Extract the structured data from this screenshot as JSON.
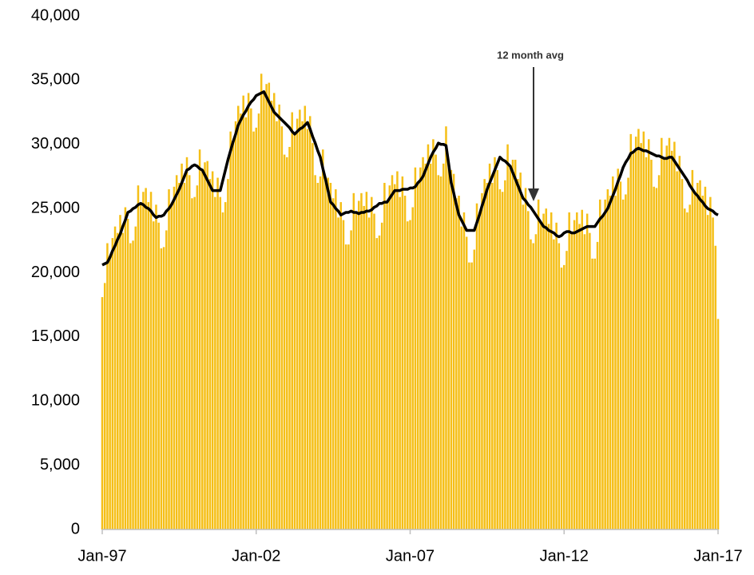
{
  "chart_data": {
    "type": "bar",
    "annotation": "12 month avg",
    "categories": [
      "Jan-97",
      null,
      null,
      null,
      null,
      null,
      null,
      null,
      null,
      null,
      null,
      null,
      null,
      null,
      null,
      null,
      null,
      null,
      null,
      null,
      null,
      null,
      null,
      null,
      null,
      null,
      null,
      null,
      null,
      null,
      null,
      null,
      null,
      null,
      null,
      null,
      null,
      null,
      null,
      null,
      null,
      null,
      null,
      null,
      null,
      null,
      null,
      null,
      null,
      null,
      null,
      null,
      null,
      null,
      null,
      null,
      null,
      null,
      null,
      null,
      "Jan-02",
      null,
      null,
      null,
      null,
      null,
      null,
      null,
      null,
      null,
      null,
      null,
      null,
      null,
      null,
      null,
      null,
      null,
      null,
      null,
      null,
      null,
      null,
      null,
      null,
      null,
      null,
      null,
      null,
      null,
      null,
      null,
      null,
      null,
      null,
      null,
      null,
      null,
      null,
      null,
      null,
      null,
      null,
      null,
      null,
      null,
      null,
      null,
      null,
      null,
      null,
      null,
      null,
      null,
      null,
      null,
      null,
      null,
      null,
      null,
      "Jan-07",
      null,
      null,
      null,
      null,
      null,
      null,
      null,
      null,
      null,
      null,
      null,
      null,
      null,
      null,
      null,
      null,
      null,
      null,
      null,
      null,
      null,
      null,
      null,
      null,
      null,
      null,
      null,
      null,
      null,
      null,
      null,
      null,
      null,
      null,
      null,
      null,
      null,
      null,
      null,
      null,
      null,
      null,
      null,
      null,
      null,
      null,
      null,
      null,
      null,
      null,
      null,
      null,
      null,
      null,
      null,
      null,
      null,
      null,
      null,
      "Jan-12",
      null,
      null,
      null,
      null,
      null,
      null,
      null,
      null,
      null,
      null,
      null,
      null,
      null,
      null,
      null,
      null,
      null,
      null,
      null,
      null,
      null,
      null,
      null,
      null,
      null,
      null,
      null,
      null,
      null,
      null,
      null,
      null,
      null,
      null,
      null,
      null,
      null,
      null,
      null,
      null,
      null,
      null,
      null,
      null,
      null,
      null,
      null,
      null,
      null,
      null,
      null,
      null,
      null,
      null,
      null,
      null,
      null,
      null,
      null,
      "Jan-17"
    ],
    "series": [
      {
        "type": "bar",
        "color": "#f5bf17",
        "values": [
          18100,
          19200,
          22300,
          21200,
          22700,
          23600,
          23100,
          24500,
          23100,
          25100,
          24200,
          22300,
          22500,
          23600,
          26800,
          25400,
          26300,
          26600,
          25500,
          26300,
          24000,
          25300,
          23900,
          21900,
          22000,
          23300,
          26500,
          25300,
          26700,
          27600,
          27000,
          28500,
          27000,
          29000,
          27600,
          25800,
          25900,
          26800,
          29600,
          28000,
          28600,
          28700,
          27300,
          27900,
          25900,
          27400,
          25900,
          24700,
          25500,
          27300,
          31000,
          30200,
          31800,
          33000,
          32400,
          33800,
          32100,
          34000,
          32800,
          31000,
          31300,
          32400,
          35500,
          34100,
          34700,
          34800,
          33400,
          34000,
          31800,
          33100,
          31400,
          29200,
          29000,
          29800,
          32500,
          30800,
          32000,
          32700,
          31800,
          33000,
          31200,
          32200,
          30100,
          27600,
          27000,
          27500,
          29600,
          27300,
          27400,
          27000,
          25800,
          26500,
          24300,
          25500,
          24100,
          22200,
          22200,
          23300,
          26200,
          24700,
          25600,
          26200,
          25200,
          26300,
          24300,
          25900,
          24600,
          22700,
          22900,
          23900,
          27000,
          25500,
          26800,
          27600,
          26900,
          27900,
          25900,
          27500,
          26000,
          24000,
          24100,
          25100,
          28200,
          27000,
          28200,
          29000,
          28500,
          30000,
          28500,
          30400,
          29200,
          27600,
          27500,
          28500,
          31400,
          28500,
          28000,
          27700,
          25800,
          26000,
          23600,
          24700,
          22800,
          20800,
          20800,
          21800,
          25400,
          24500,
          26200,
          27300,
          27000,
          28500,
          27000,
          29000,
          28000,
          26500,
          26300,
          27200,
          30000,
          28300,
          28800,
          28800,
          27300,
          27800,
          25300,
          26600,
          24800,
          22600,
          22300,
          23000,
          25700,
          23900,
          24600,
          25000,
          23800,
          24700,
          22600,
          23900,
          22300,
          20400,
          20600,
          21700,
          24700,
          23100,
          24100,
          24700,
          23800,
          24900,
          23000,
          24600,
          23100,
          21100,
          21100,
          22400,
          25700,
          24400,
          25700,
          26500,
          26000,
          27500,
          26000,
          28100,
          27100,
          25700,
          26100,
          27400,
          30800,
          29400,
          30600,
          31200,
          30100,
          31000,
          29000,
          30400,
          28800,
          26700,
          26600,
          27600,
          30500,
          28900,
          29900,
          30500,
          29500,
          30200,
          27900,
          29100,
          27300,
          25000,
          24700,
          25300,
          28000,
          26200,
          27000,
          27200,
          26000,
          26700,
          24500,
          25900,
          24300,
          22100,
          16400
        ]
      },
      {
        "type": "line",
        "color": "#000000",
        "values": [
          20600,
          20700,
          20800,
          21200,
          21700,
          22100,
          22600,
          23000,
          23600,
          24100,
          24700,
          24800,
          25000,
          25100,
          25300,
          25400,
          25300,
          25100,
          25000,
          24800,
          24500,
          24300,
          24400,
          24400,
          24500,
          24800,
          25000,
          25300,
          25700,
          26100,
          26500,
          27000,
          27500,
          28000,
          28100,
          28300,
          28400,
          28300,
          28100,
          28000,
          27600,
          27200,
          26800,
          26400,
          26400,
          26400,
          26400,
          27200,
          28000,
          28800,
          29500,
          30200,
          30800,
          31500,
          31900,
          32300,
          32600,
          33000,
          33300,
          33500,
          33800,
          33900,
          34000,
          34100,
          33700,
          33300,
          32900,
          32500,
          32300,
          32100,
          31900,
          31700,
          31500,
          31300,
          31000,
          30800,
          31000,
          31200,
          31300,
          31500,
          31700,
          31200,
          30600,
          30100,
          29500,
          29000,
          28100,
          27300,
          26400,
          25500,
          25300,
          25000,
          24800,
          24500,
          24600,
          24700,
          24700,
          24800,
          24700,
          24700,
          24600,
          24700,
          24700,
          24800,
          24800,
          24900,
          25100,
          25200,
          25400,
          25400,
          25500,
          25500,
          25800,
          26100,
          26400,
          26400,
          26400,
          26500,
          26500,
          26500,
          26600,
          26600,
          26700,
          27000,
          27200,
          27500,
          28000,
          28500,
          29000,
          29400,
          29700,
          30100,
          30000,
          30000,
          29900,
          28500,
          27000,
          26200,
          25300,
          24500,
          24100,
          23700,
          23300,
          23300,
          23300,
          23300,
          23900,
          24500,
          25200,
          25800,
          26500,
          27000,
          27500,
          28000,
          28500,
          29000,
          28800,
          28700,
          28500,
          28300,
          27800,
          27300,
          26800,
          26300,
          25800,
          25600,
          25300,
          25100,
          24800,
          24500,
          24200,
          23900,
          23600,
          23500,
          23300,
          23200,
          23100,
          22900,
          22800,
          22900,
          23100,
          23200,
          23200,
          23100,
          23100,
          23200,
          23300,
          23400,
          23500,
          23600,
          23600,
          23600,
          23600,
          23900,
          24200,
          24400,
          24700,
          25000,
          25500,
          26000,
          26500,
          27100,
          27600,
          28200,
          28600,
          28900,
          29300,
          29400,
          29600,
          29700,
          29600,
          29500,
          29500,
          29400,
          29300,
          29200,
          29100,
          29100,
          29000,
          28900,
          28900,
          29000,
          29000,
          28700,
          28400,
          28100,
          27800,
          27500,
          27200,
          26800,
          26500,
          26200,
          26000,
          25700,
          25500,
          25200,
          25000,
          24900,
          24800,
          24600,
          24500
        ]
      }
    ],
    "ylim": [
      0,
      40000
    ],
    "yticks": [
      0,
      {
        "value": 5000,
        "label": "5,000"
      },
      {
        "value": 10000,
        "label": "10,000"
      },
      {
        "value": 15000,
        "label": "15,000"
      },
      {
        "value": 20000,
        "label": "20,000"
      },
      {
        "value": 25000,
        "label": "25,000"
      },
      {
        "value": 30000,
        "label": "30,000"
      },
      {
        "value": 35000,
        "label": "35,000"
      },
      {
        "value": 40000,
        "label": "40,000"
      }
    ],
    "grid": false
  }
}
